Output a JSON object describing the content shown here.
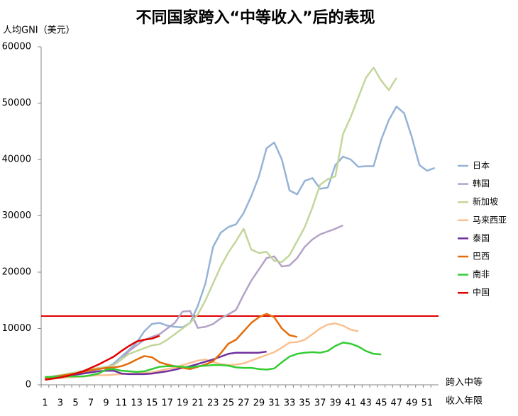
{
  "chart_data": {
    "type": "line",
    "title": "不同国家跨入“中等收入”后的表现",
    "y_label": "人均GNI（美元）",
    "x_label": [
      "跨入中等",
      "收入年限"
    ],
    "categories": [
      1,
      null,
      3,
      null,
      5,
      null,
      7,
      null,
      9,
      null,
      11,
      null,
      13,
      null,
      15,
      null,
      17,
      null,
      19,
      null,
      21,
      null,
      23,
      null,
      25,
      null,
      27,
      null,
      29,
      null,
      31,
      null,
      33,
      null,
      35,
      null,
      37,
      null,
      39,
      null,
      41,
      null,
      43,
      null,
      45,
      null,
      47,
      null,
      49,
      null,
      51,
      null
    ],
    "ylim": [
      0,
      60000
    ],
    "yticks": [
      0,
      10000,
      20000,
      30000,
      40000,
      50000,
      60000
    ],
    "grid": false,
    "legend": "right",
    "reference_line": {
      "value": 12200,
      "color": "#e00000"
    },
    "series": [
      {
        "name": "日本",
        "color": "#95b3d7",
        "values": [
          1200,
          1500,
          1700,
          1900,
          2000,
          2200,
          2500,
          2800,
          3000,
          3800,
          5000,
          6200,
          7500,
          9500,
          10800,
          11000,
          10500,
          10300,
          10200,
          11000,
          14000,
          18000,
          24500,
          27000,
          28000,
          28500,
          30500,
          33500,
          37000,
          42000,
          43000,
          40000,
          34500,
          33800,
          36200,
          36700,
          34800,
          35000,
          39000,
          40500,
          40000,
          38700,
          38800,
          38800,
          43500,
          47000,
          49400,
          48200,
          44000,
          39000,
          38000,
          38500
        ]
      },
      {
        "name": "韩国",
        "color": "#b3a2c7",
        "values": [
          1200,
          1400,
          1600,
          1800,
          2000,
          2300,
          2600,
          2900,
          3200,
          3500,
          4500,
          6000,
          7000,
          8000,
          8500,
          9000,
          10000,
          11000,
          13000,
          13100,
          10100,
          10300,
          10800,
          11800,
          12500,
          13300,
          16000,
          18500,
          20500,
          22500,
          22800,
          21000,
          21200,
          22500,
          24500,
          25800,
          26700,
          27200,
          27700,
          28300,
          null,
          null,
          null,
          null,
          null,
          null,
          null,
          null,
          null,
          null,
          null,
          null
        ]
      },
      {
        "name": "新加坡",
        "color": "#c3d69b",
        "values": [
          1200,
          1400,
          1700,
          2000,
          2200,
          2500,
          2800,
          3000,
          3200,
          3500,
          4500,
          5500,
          6000,
          6500,
          7000,
          7200,
          8000,
          9000,
          10000,
          11000,
          12500,
          15000,
          18000,
          21000,
          23500,
          25500,
          27700,
          24000,
          23400,
          23600,
          22000,
          21800,
          23000,
          25500,
          28000,
          31500,
          35500,
          36500,
          37000,
          44500,
          47500,
          51000,
          54500,
          56300,
          54000,
          52300,
          54500,
          null,
          null,
          null,
          null,
          null
        ]
      },
      {
        "name": "马来西亚",
        "color": "#fac090",
        "values": [
          1000,
          1100,
          1200,
          1300,
          1400,
          1500,
          1600,
          1700,
          1700,
          1800,
          1900,
          2000,
          2000,
          2100,
          2200,
          2500,
          2800,
          3100,
          3500,
          3900,
          4300,
          4500,
          4000,
          3700,
          3500,
          3600,
          3800,
          4300,
          4800,
          5300,
          5800,
          6600,
          7500,
          7600,
          8000,
          9000,
          10000,
          10700,
          10900,
          10500,
          9800,
          9500,
          null,
          null,
          null,
          null,
          null,
          null,
          null,
          null,
          null,
          null
        ]
      },
      {
        "name": "泰国",
        "color": "#7030a0",
        "values": [
          1100,
          1300,
          1500,
          1700,
          1800,
          2000,
          2200,
          2400,
          2500,
          2500,
          2000,
          1900,
          1900,
          1900,
          2000,
          2200,
          2400,
          2700,
          3000,
          3300,
          3700,
          4100,
          4500,
          5000,
          5500,
          5700,
          5700,
          5700,
          5700,
          5900,
          null,
          null,
          null,
          null,
          null,
          null,
          null,
          null,
          null,
          null,
          null,
          null,
          null,
          null,
          null,
          null,
          null,
          null,
          null,
          null,
          null,
          null
        ]
      },
      {
        "name": "巴西",
        "color": "#e46c0a",
        "values": [
          1200,
          1400,
          1600,
          1800,
          2000,
          2300,
          2600,
          2800,
          3000,
          3100,
          3300,
          3800,
          4500,
          5100,
          4900,
          4000,
          3600,
          3300,
          3000,
          2800,
          3200,
          3600,
          4200,
          5600,
          7300,
          8000,
          9500,
          11000,
          12000,
          12600,
          12000,
          10000,
          8800,
          8500,
          null,
          null,
          null,
          null,
          null,
          null,
          null,
          null,
          null,
          null,
          null,
          null,
          null,
          null,
          null,
          null,
          null,
          null
        ]
      },
      {
        "name": "南非",
        "color": "#33cc33",
        "values": [
          1400,
          1400,
          1450,
          1500,
          1500,
          1500,
          1700,
          2000,
          2700,
          2800,
          2500,
          2400,
          2300,
          2400,
          2800,
          3200,
          3300,
          3300,
          3200,
          3100,
          3300,
          3400,
          3500,
          3500,
          3400,
          3100,
          3000,
          3000,
          2800,
          2700,
          2900,
          4000,
          5000,
          5500,
          5700,
          5800,
          5700,
          6000,
          6900,
          7500,
          7300,
          6800,
          6000,
          5500,
          5400,
          null,
          null,
          null,
          null,
          null,
          null,
          null
        ]
      },
      {
        "name": "中国",
        "color": "#e00000",
        "values": [
          900,
          1100,
          1300,
          1600,
          2000,
          2400,
          3000,
          3600,
          4300,
          5000,
          6000,
          6900,
          7700,
          8000,
          8200,
          8700,
          null,
          null,
          null,
          null,
          null,
          null,
          null,
          null,
          null,
          null,
          null,
          null,
          null,
          null,
          null,
          null,
          null,
          null,
          null,
          null,
          null,
          null,
          null,
          null,
          null,
          null,
          null,
          null,
          null,
          null,
          null,
          null,
          null,
          null,
          null,
          null
        ]
      }
    ]
  }
}
